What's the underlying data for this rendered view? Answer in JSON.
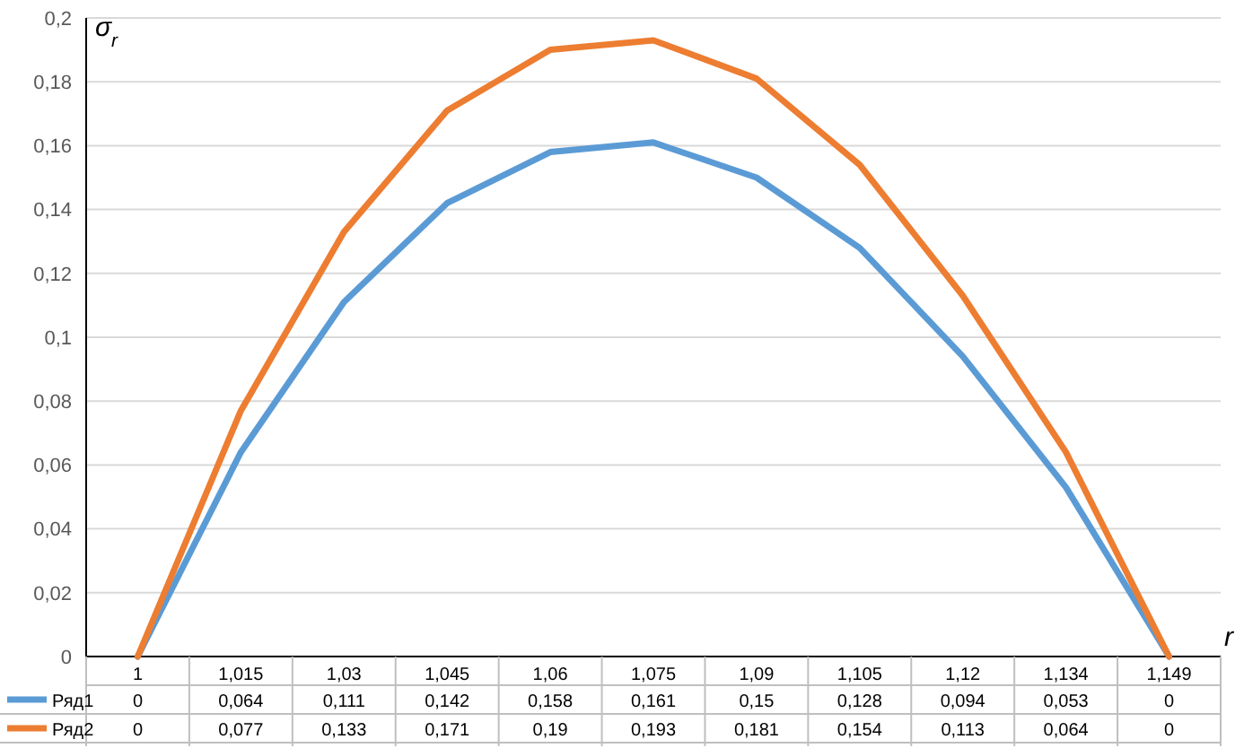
{
  "chart_data": {
    "type": "line",
    "ylabel": "σ$_{r}$",
    "xlabel": "r",
    "categories": [
      "1",
      "1,015",
      "1,03",
      "1,045",
      "1,06",
      "1,075",
      "1,09",
      "1,105",
      "1,12",
      "1,134",
      "1,149"
    ],
    "series": [
      {
        "name": "Ряд1",
        "color": "#5b9bd5",
        "values": [
          0,
          0.064,
          0.111,
          0.142,
          0.158,
          0.161,
          0.15,
          0.128,
          0.094,
          0.053,
          0
        ],
        "value_labels": [
          "0",
          "0,064",
          "0,111",
          "0,142",
          "0,158",
          "0,161",
          "0,15",
          "0,128",
          "0,094",
          "0,053",
          "0"
        ]
      },
      {
        "name": "Ряд2",
        "color": "#ed7d31",
        "values": [
          0,
          0.077,
          0.133,
          0.171,
          0.19,
          0.193,
          0.181,
          0.154,
          0.113,
          0.064,
          0
        ],
        "value_labels": [
          "0",
          "0,077",
          "0,133",
          "0,171",
          "0,19",
          "0,193",
          "0,181",
          "0,154",
          "0,113",
          "0,064",
          "0"
        ]
      }
    ],
    "ylim": [
      0,
      0.2
    ],
    "yticks": [
      0,
      {
        "value": 0.02,
        "label": "0,02"
      },
      {
        "value": 0.04,
        "label": "0,04"
      },
      {
        "value": 0.06,
        "label": "0,06"
      },
      {
        "value": 0.08,
        "label": "0,08"
      },
      {
        "value": 0.1,
        "label": "0,1"
      },
      {
        "value": 0.12,
        "label": "0,12"
      },
      {
        "value": 0.14,
        "label": "0,14"
      },
      {
        "value": 0.16,
        "label": "0,16"
      },
      {
        "value": 0.18,
        "label": "0,18"
      },
      {
        "value": 0.2,
        "label": "0,2"
      }
    ],
    "grid": "y",
    "legend": "bottom",
    "marker": "none",
    "line_style": "solid"
  }
}
